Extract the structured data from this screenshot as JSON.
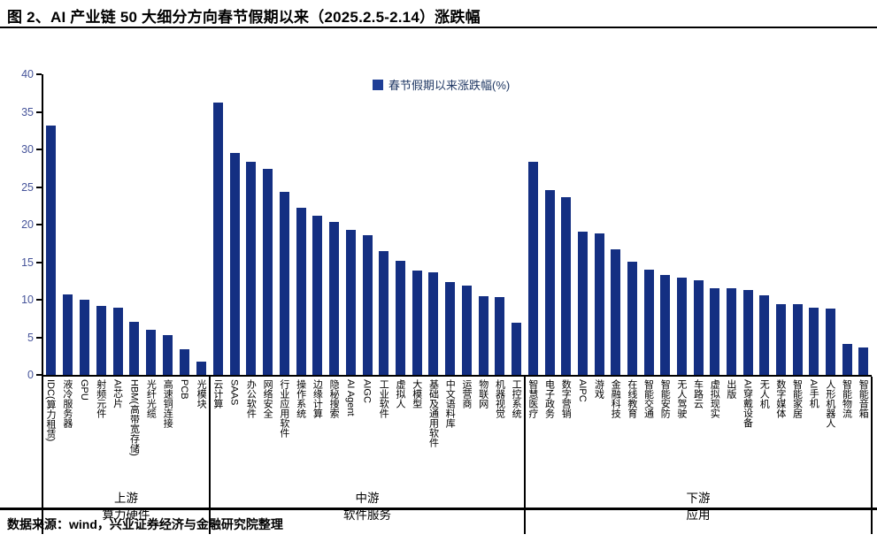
{
  "page": {
    "title": "图 2、AI 产业链 50 大细分方向春节假期以来（2025.2.5-2.14）涨跌幅",
    "source_note": "数据来源：wind，兴业证券经济与金融研究院整理"
  },
  "chart_data": {
    "type": "bar",
    "title": "AI 产业链 50 大细分方向春节假期以来（2025.2.5-2.14）涨跌幅",
    "legend": [
      "春节假期以来涨跌幅(%)"
    ],
    "legend_position": "top-center",
    "grid": false,
    "ylim": [
      0,
      40
    ],
    "yticks": [
      0,
      5,
      10,
      15,
      20,
      25,
      30,
      35,
      40
    ],
    "bar_color": "#142F82",
    "groups": [
      {
        "group_label_line1": "上游",
        "group_label_line2": "算力硬件",
        "categories": [
          "IDC(算力租赁)",
          "液冷服务器",
          "GPU",
          "射频元件",
          "AI芯片",
          "HBM(高带宽存储)",
          "光纤光缆",
          "高速铜连接",
          "PCB",
          "光模块"
        ],
        "values": [
          33.2,
          10.7,
          10.0,
          9.2,
          8.9,
          7.1,
          6.0,
          5.3,
          3.4,
          1.8
        ]
      },
      {
        "group_label_line1": "中游",
        "group_label_line2": "软件服务",
        "categories": [
          "云计算",
          "SAAS",
          "办公软件",
          "网络安全",
          "行业应用软件",
          "操作系统",
          "边缘计算",
          "隐秘搜索",
          "AI Agent",
          "AIGC",
          "工业软件",
          "虚拟人",
          "大模型",
          "基础及通用软件",
          "中文语料库",
          "运营商",
          "物联网",
          "机器视觉",
          "工控系统"
        ],
        "values": [
          36.2,
          29.5,
          28.3,
          27.4,
          24.4,
          22.2,
          21.2,
          20.4,
          19.3,
          18.6,
          16.5,
          15.2,
          13.9,
          13.7,
          12.4,
          11.9,
          10.5,
          10.3,
          6.9
        ]
      },
      {
        "group_label_line1": "下游",
        "group_label_line2": "应用",
        "categories": [
          "智慧医疗",
          "电子政务",
          "数字营销",
          "AIPC",
          "游戏",
          "金融科技",
          "在线教育",
          "智能交通",
          "智能安防",
          "无人驾驶",
          "车路云",
          "虚拟现实",
          "出版",
          "AI穿戴设备",
          "无人机",
          "数字媒体",
          "智能家居",
          "AI手机",
          "人形机器人",
          "智能物流",
          "智能音箱"
        ],
        "values": [
          28.3,
          24.6,
          23.6,
          19.1,
          18.8,
          16.7,
          15.1,
          14.0,
          13.3,
          12.9,
          12.6,
          11.5,
          11.5,
          11.3,
          10.6,
          9.4,
          9.4,
          9.0,
          8.8,
          4.1,
          3.7
        ]
      }
    ]
  }
}
